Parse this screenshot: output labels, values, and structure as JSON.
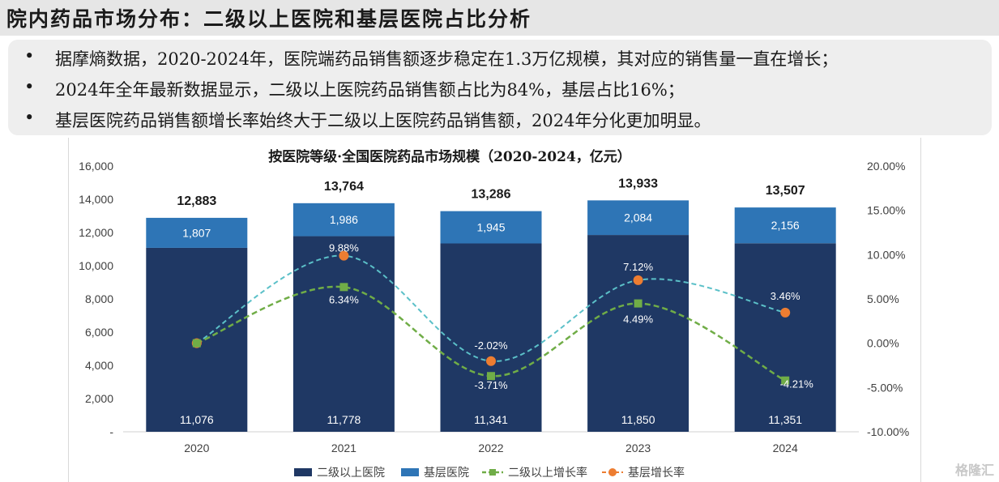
{
  "page": {
    "title": "院内药品市场分布：二级以上医院和基层医院占比分析",
    "bullets": [
      "据摩熵数据，2020-2024年，医院端药品销售额逐步稳定在1.3万亿规模，其对应的销售量一直在增长；",
      "2024年全年最新数据显示，二级以上医院药品销售额占比为84%，基层占比16%；",
      "基层医院药品销售额增长率始终大于二级以上医院药品销售额，2024年分化更加明显。"
    ],
    "bullet_symbol": "•",
    "watermark": "格隆汇"
  },
  "chart_data": {
    "type": "bar",
    "stacked": true,
    "title": "按医院等级·全国医院药品市场规模（2020-2024，亿元）",
    "categories": [
      "2020",
      "2021",
      "2022",
      "2023",
      "2024"
    ],
    "totals": [
      "12,883",
      "13,764",
      "13,286",
      "13,933",
      "13,507"
    ],
    "series": [
      {
        "name": "二级以上医院",
        "kind": "bar",
        "color": "#1f3864",
        "values": [
          11076,
          11778,
          11341,
          11850,
          11351
        ],
        "labels": [
          "11,076",
          "11,778",
          "11,341",
          "11,850",
          "11,351"
        ]
      },
      {
        "name": "基层医院",
        "kind": "bar",
        "color": "#2e75b6",
        "values": [
          1807,
          1986,
          1945,
          2084,
          2156
        ],
        "labels": [
          "1,807",
          "1,986",
          "1,945",
          "2,084",
          "2,156"
        ]
      },
      {
        "name": "二级以上增长率",
        "kind": "line",
        "axis": "right",
        "color": "#70ad47",
        "values": [
          0,
          6.34,
          -3.71,
          4.49,
          -4.21
        ],
        "labels": [
          "",
          "6.34%",
          "-3.71%",
          "4.49%",
          "-4.21%"
        ]
      },
      {
        "name": "基层增长率",
        "kind": "line",
        "axis": "right",
        "color": "#ed7d31",
        "values": [
          0,
          9.88,
          -2.02,
          7.12,
          3.46
        ],
        "labels": [
          "",
          "9.88%",
          "-2.02%",
          "7.12%",
          "3.46%"
        ]
      }
    ],
    "y_left": {
      "range": [
        0,
        16000
      ],
      "ticks": [
        "-",
        "2,000",
        "4,000",
        "6,000",
        "8,000",
        "10,000",
        "12,000",
        "14,000",
        "16,000"
      ]
    },
    "y_right": {
      "range": [
        -10,
        20
      ],
      "ticks": [
        "-10.00%",
        "-5.00%",
        "0.00%",
        "5.00%",
        "10.00%",
        "15.00%",
        "20.00%"
      ]
    },
    "line_style": {
      "dash": true,
      "smooth": true,
      "trend_color_base": "#5bc0c8"
    },
    "grid": false,
    "legend_position": "bottom"
  }
}
